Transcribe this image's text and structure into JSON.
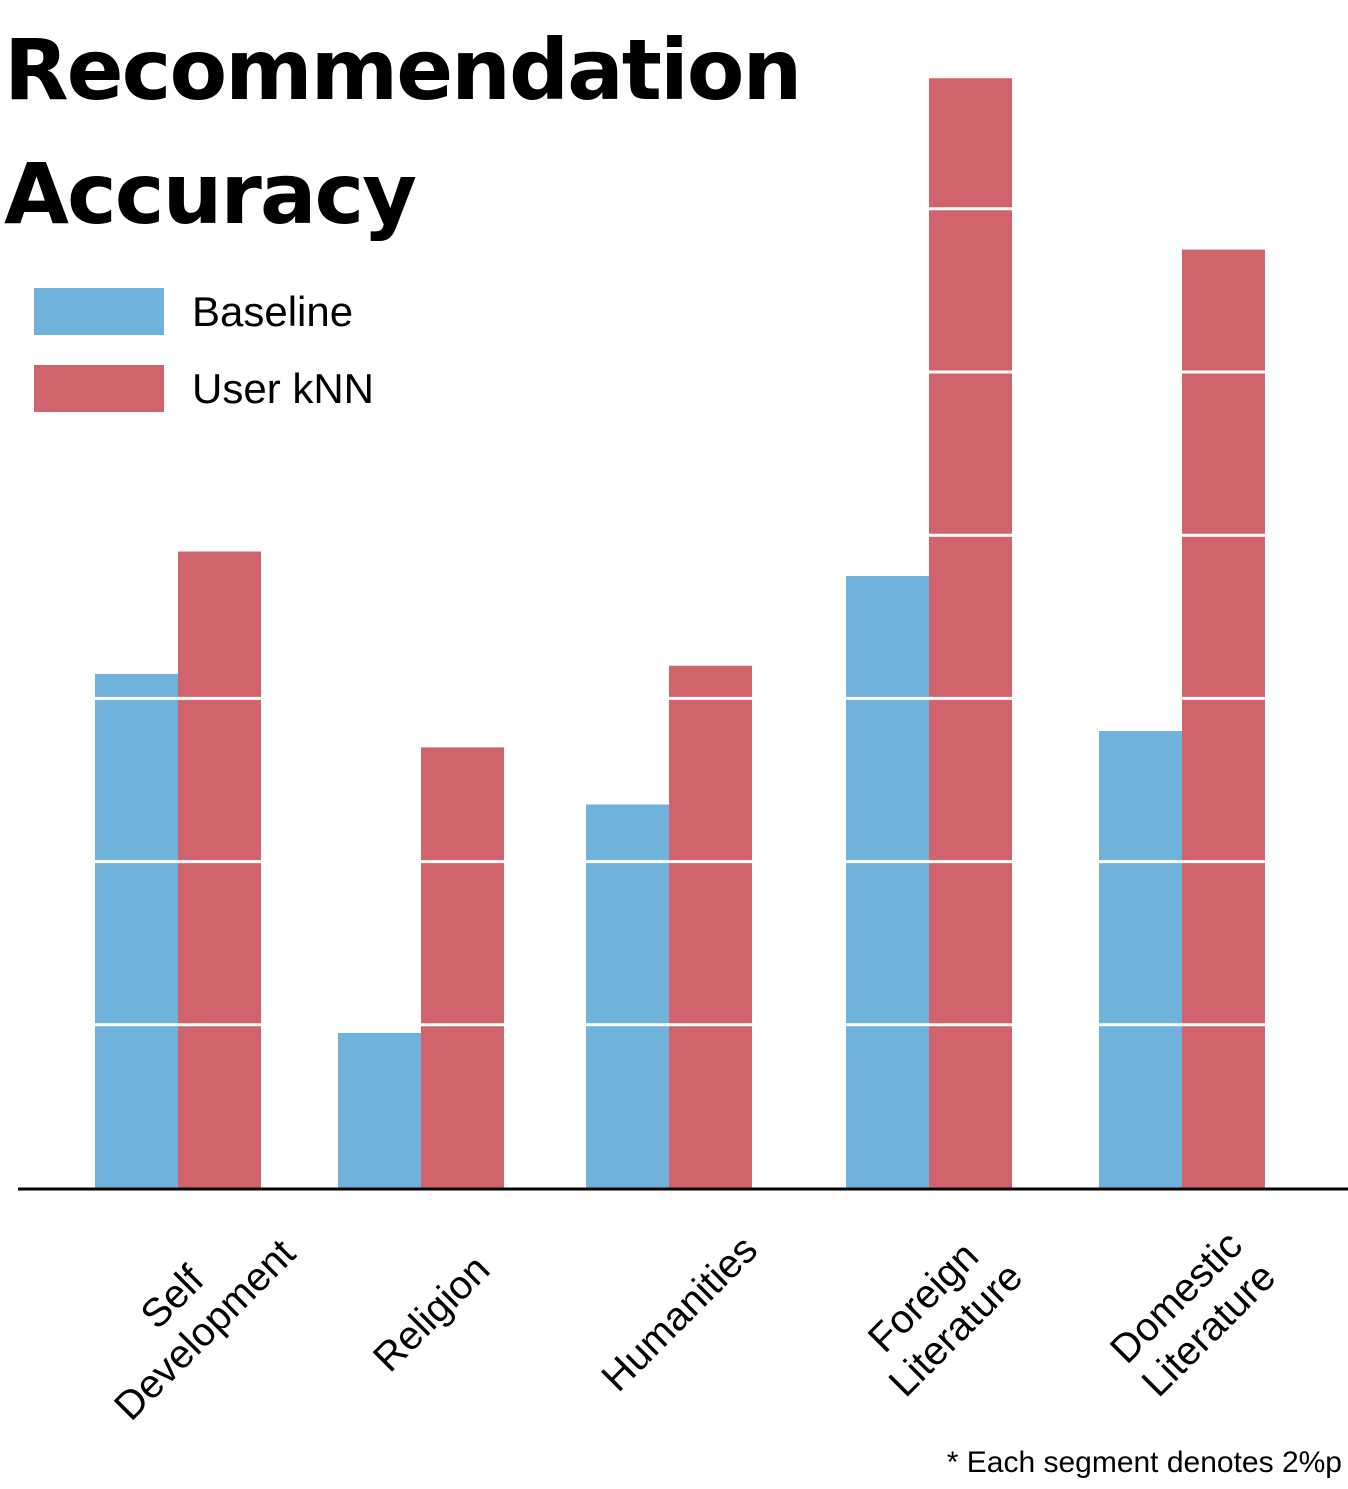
{
  "chart_data": {
    "type": "bar",
    "title": "Recommendation Accuracy",
    "categories": [
      [
        "Self",
        "Development"
      ],
      [
        "Religion"
      ],
      [
        "Humanities"
      ],
      [
        "Foreign",
        "Literature"
      ],
      [
        "Domestic",
        "Literature"
      ]
    ],
    "series": [
      {
        "name": "Baseline",
        "color": "#6fb2dc",
        "values": [
          6.3,
          1.9,
          4.7,
          7.5,
          5.6
        ]
      },
      {
        "name": "User kNN",
        "color": "#d1636d",
        "values": [
          7.8,
          5.4,
          6.4,
          13.6,
          11.5
        ]
      }
    ],
    "segment_size": 2,
    "xlabel": "",
    "ylabel": "",
    "legend": "top-left",
    "grid": false,
    "footnote": "* Each segment denotes 2%p"
  }
}
